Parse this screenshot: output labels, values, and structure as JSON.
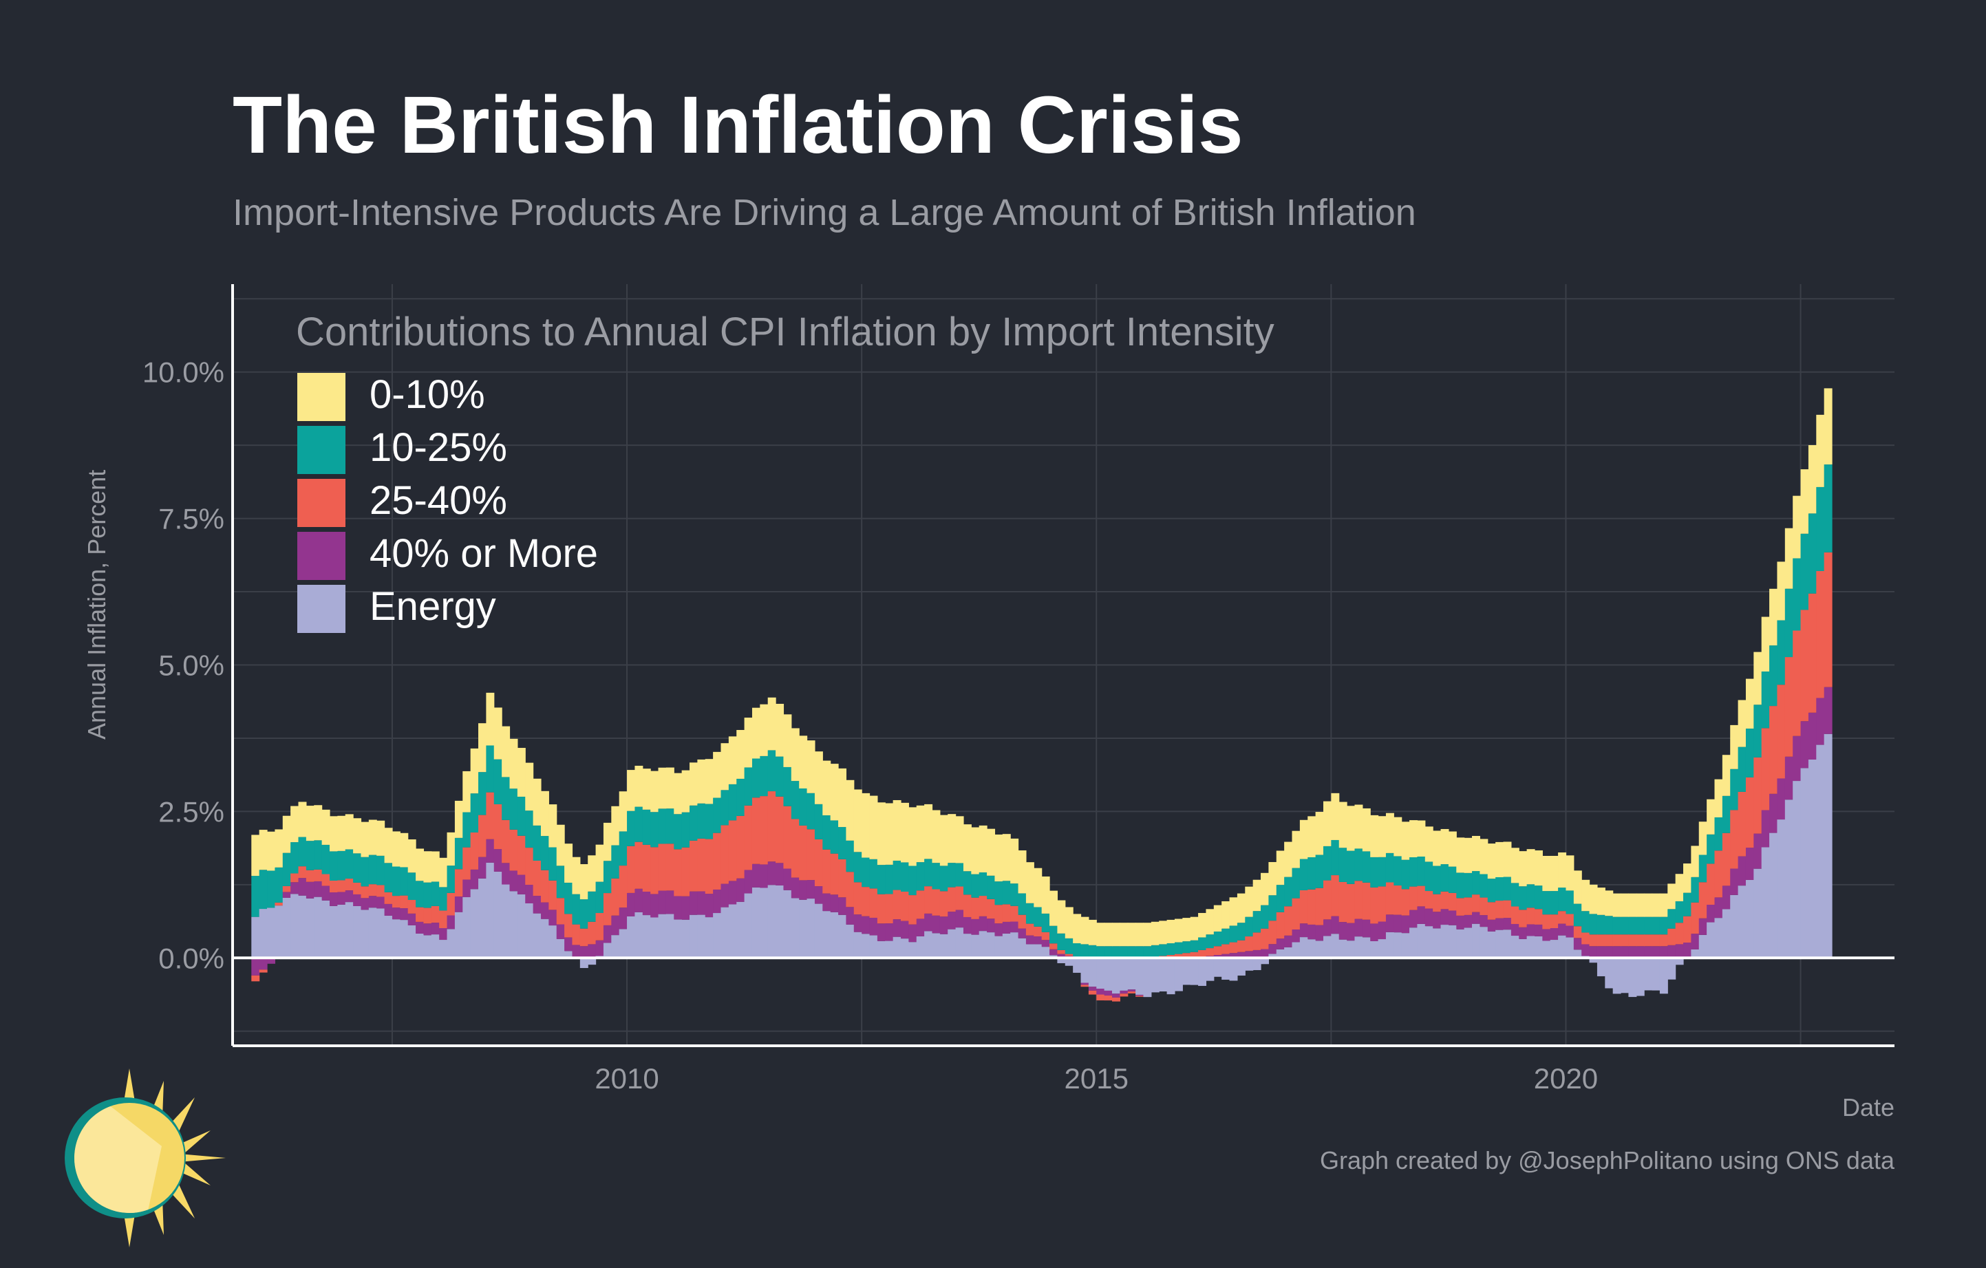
{
  "title": "The British Inflation Crisis",
  "subtitle": "Import-Intensive Products Are Driving a Large Amount of British Inflation",
  "caption": "Graph created by @JosephPolitano using ONS data",
  "colors": {
    "background": "#252932",
    "grid": "#3b3f48",
    "axis": "#ffffff",
    "zero_line": "#ffffff"
  },
  "logo": "sun-icon",
  "chart_data": {
    "type": "area",
    "stacked": true,
    "diverging": true,
    "xlabel": "Date",
    "ylabel": "Annual Inflation, Percent",
    "ylim": [
      -1.5,
      11.5
    ],
    "y_ticks": [
      0,
      2.5,
      5,
      7.5,
      10
    ],
    "y_tick_labels": [
      "0.0%",
      "2.5%",
      "5.0%",
      "7.5%",
      "10.0%"
    ],
    "x_ticks": [
      2010,
      2015,
      2020
    ],
    "x_tick_labels": [
      "2010",
      "2015",
      "2020"
    ],
    "xlim": [
      2005.8,
      2023.5
    ],
    "legend_title": "Contributions to Annual CPI Inflation by Import Intensity",
    "legend_position": "top-left",
    "x": [
      "2006-01",
      "2006-07",
      "2007-01",
      "2007-07",
      "2008-01",
      "2008-07",
      "2009-01",
      "2009-07",
      "2010-01",
      "2010-07",
      "2011-01",
      "2011-07",
      "2012-01",
      "2012-07",
      "2013-01",
      "2013-07",
      "2014-01",
      "2014-07",
      "2015-01",
      "2015-07",
      "2016-01",
      "2016-07",
      "2017-01",
      "2017-07",
      "2018-01",
      "2018-07",
      "2019-01",
      "2019-07",
      "2020-01",
      "2020-07",
      "2021-01",
      "2021-07",
      "2022-01",
      "2022-07",
      "2022-10"
    ],
    "series": [
      {
        "name": "Energy",
        "color": "#a9acd6",
        "values": [
          0.7,
          1.1,
          0.9,
          0.7,
          0.3,
          1.6,
          0.8,
          -0.2,
          0.7,
          0.7,
          0.8,
          1.3,
          0.9,
          0.4,
          0.3,
          0.5,
          0.4,
          0.1,
          -0.6,
          -0.6,
          -0.5,
          -0.3,
          0.2,
          0.4,
          0.3,
          0.6,
          0.5,
          0.4,
          0.3,
          -0.6,
          -0.6,
          0.6,
          1.5,
          3.3,
          3.8
        ]
      },
      {
        "name": "40% or More",
        "color": "#93358f",
        "values": [
          -0.3,
          0.3,
          0.2,
          0.2,
          0.2,
          0.4,
          0.3,
          0.2,
          0.4,
          0.4,
          0.4,
          0.4,
          0.3,
          0.3,
          0.3,
          0.3,
          0.2,
          0.1,
          -0.1,
          0.0,
          0.0,
          0.1,
          0.2,
          0.3,
          0.3,
          0.3,
          0.2,
          0.2,
          0.2,
          0.2,
          0.2,
          0.3,
          0.6,
          0.8,
          0.8
        ]
      },
      {
        "name": "25-40%",
        "color": "#ef5f51",
        "values": [
          -0.1,
          0.2,
          0.2,
          0.2,
          0.3,
          0.8,
          0.6,
          0.3,
          0.8,
          0.8,
          1.0,
          1.2,
          0.8,
          0.5,
          0.5,
          0.4,
          0.3,
          0.1,
          -0.1,
          0.0,
          0.1,
          0.2,
          0.5,
          0.7,
          0.6,
          0.3,
          0.3,
          0.3,
          0.2,
          0.2,
          0.2,
          0.7,
          1.3,
          1.9,
          2.3
        ]
      },
      {
        "name": "10-25%",
        "color": "#0ba39c",
        "values": [
          0.7,
          0.5,
          0.5,
          0.5,
          0.4,
          0.8,
          0.6,
          0.5,
          0.6,
          0.6,
          0.6,
          0.7,
          0.6,
          0.5,
          0.5,
          0.4,
          0.4,
          0.3,
          0.2,
          0.2,
          0.2,
          0.3,
          0.5,
          0.6,
          0.5,
          0.5,
          0.4,
          0.4,
          0.4,
          0.3,
          0.3,
          0.5,
          0.9,
          1.3,
          1.5
        ]
      },
      {
        "name": "0-10%",
        "color": "#fce98a",
        "values": [
          0.7,
          0.6,
          0.6,
          0.6,
          0.5,
          0.9,
          0.8,
          0.6,
          0.7,
          0.7,
          0.8,
          0.9,
          0.9,
          1.1,
          1.0,
          0.8,
          0.8,
          0.6,
          0.4,
          0.4,
          0.4,
          0.5,
          0.6,
          0.8,
          0.7,
          0.6,
          0.6,
          0.6,
          0.6,
          0.4,
          0.4,
          0.6,
          0.9,
          1.1,
          1.3
        ]
      }
    ]
  }
}
